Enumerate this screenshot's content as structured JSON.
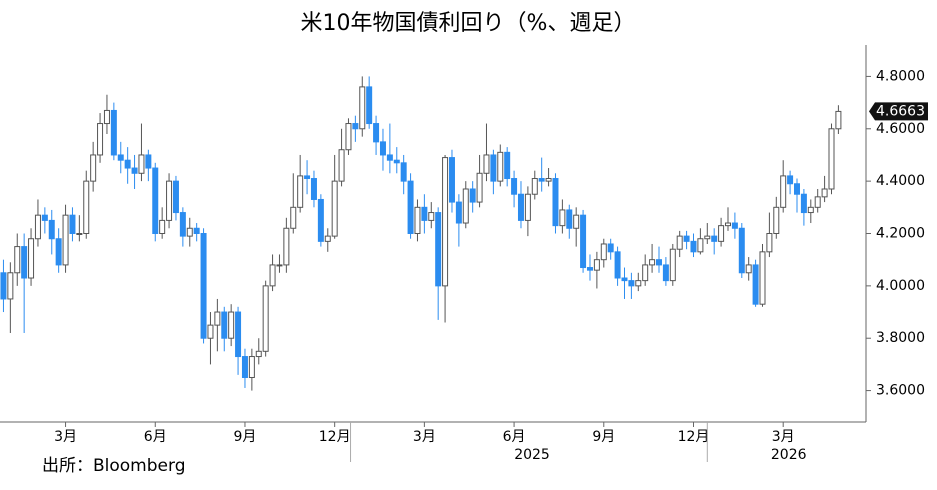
{
  "chart_data": {
    "type": "candlestick",
    "title": "米10年物国債利回り（%、週足）",
    "source": "出所：Bloomberg",
    "up_color": "#ffffff",
    "down_color": "#2b8cf0",
    "outline_color": "#555555",
    "open": [
      4.05,
      3.95,
      4.05,
      4.15,
      4.03,
      4.18,
      4.27,
      4.25,
      4.18,
      4.08,
      4.27,
      4.2,
      4.2,
      4.4,
      4.5,
      4.62,
      4.67,
      4.5,
      4.48,
      4.45,
      4.43,
      4.5,
      4.45,
      4.2,
      4.25,
      4.4,
      4.28,
      4.19,
      4.22,
      4.2,
      3.8,
      3.85,
      3.9,
      3.8,
      3.9,
      3.73,
      3.65,
      3.73,
      3.75,
      4.0,
      4.08,
      4.08,
      4.22,
      4.3,
      4.42,
      4.41,
      4.33,
      4.17,
      4.19,
      4.4,
      4.52,
      4.62,
      4.6,
      4.76,
      4.62,
      4.55,
      4.5,
      4.48,
      4.47,
      4.4,
      4.2,
      4.3,
      4.25,
      4.28,
      4.0,
      4.49,
      4.32,
      4.24,
      4.37,
      4.32,
      4.43,
      4.5,
      4.4,
      4.51,
      4.41,
      4.35,
      4.25,
      4.35,
      4.41,
      4.4,
      4.41,
      4.23,
      4.29,
      4.22,
      4.27,
      4.07,
      4.06,
      4.1,
      4.16,
      4.13,
      4.03,
      4.02,
      4.0,
      4.02,
      4.08,
      4.1,
      4.08,
      4.02,
      4.14,
      4.19,
      4.17,
      4.13,
      4.18,
      4.19,
      4.17,
      4.23,
      4.24,
      4.22,
      4.05,
      4.08,
      3.93,
      4.13,
      4.2,
      4.3,
      4.42,
      4.39,
      4.35,
      4.28,
      4.3,
      4.34,
      4.37,
      4.6
    ],
    "high": [
      4.1,
      4.09,
      4.2,
      4.2,
      4.22,
      4.33,
      4.3,
      4.29,
      4.22,
      4.31,
      4.3,
      4.27,
      4.44,
      4.55,
      4.66,
      4.73,
      4.7,
      4.55,
      4.53,
      4.5,
      4.62,
      4.52,
      4.47,
      4.3,
      4.43,
      4.42,
      4.3,
      4.26,
      4.24,
      4.22,
      3.9,
      3.95,
      3.92,
      3.93,
      3.92,
      3.76,
      3.76,
      3.8,
      4.02,
      4.12,
      4.12,
      4.26,
      4.43,
      4.5,
      4.48,
      4.44,
      4.35,
      4.22,
      4.5,
      4.6,
      4.64,
      4.65,
      4.8,
      4.8,
      4.65,
      4.6,
      4.62,
      4.53,
      4.5,
      4.43,
      4.33,
      4.35,
      4.32,
      4.3,
      4.5,
      4.52,
      4.35,
      4.4,
      4.4,
      4.5,
      4.62,
      4.52,
      4.54,
      4.53,
      4.44,
      4.4,
      4.38,
      4.44,
      4.49,
      4.45,
      4.43,
      4.33,
      4.31,
      4.3,
      4.29,
      4.12,
      4.13,
      4.18,
      4.18,
      4.15,
      4.07,
      4.05,
      4.05,
      4.12,
      4.16,
      4.15,
      4.11,
      4.16,
      4.21,
      4.21,
      4.2,
      4.22,
      4.24,
      4.22,
      4.26,
      4.3,
      4.28,
      4.24,
      4.11,
      4.1,
      4.16,
      4.28,
      4.34,
      4.48,
      4.44,
      4.41,
      4.37,
      4.33,
      4.37,
      4.42,
      4.62,
      4.69
    ],
    "low": [
      3.9,
      3.82,
      4.0,
      3.82,
      4.0,
      4.15,
      4.2,
      4.12,
      4.05,
      4.05,
      4.17,
      4.17,
      4.18,
      4.36,
      4.47,
      4.58,
      4.48,
      4.43,
      4.39,
      4.37,
      4.4,
      4.4,
      4.17,
      4.18,
      4.22,
      4.25,
      4.15,
      4.15,
      4.17,
      3.78,
      3.7,
      3.75,
      3.75,
      3.77,
      3.66,
      3.61,
      3.6,
      3.7,
      3.73,
      3.98,
      4.05,
      4.05,
      4.2,
      4.28,
      4.35,
      4.3,
      4.15,
      4.13,
      4.18,
      4.38,
      4.5,
      4.55,
      4.57,
      4.6,
      4.5,
      4.44,
      4.43,
      4.43,
      4.35,
      4.18,
      4.17,
      4.2,
      4.22,
      3.87,
      3.86,
      4.28,
      4.15,
      4.22,
      4.28,
      4.3,
      4.4,
      4.35,
      4.38,
      4.38,
      4.3,
      4.22,
      4.19,
      4.33,
      4.36,
      4.38,
      4.2,
      4.2,
      4.18,
      4.15,
      4.05,
      4.02,
      3.99,
      4.07,
      4.1,
      4.0,
      3.95,
      3.95,
      3.98,
      4.0,
      4.05,
      4.05,
      4.0,
      4.0,
      4.11,
      4.14,
      4.11,
      4.12,
      4.16,
      4.12,
      4.15,
      4.21,
      4.18,
      4.03,
      4.02,
      3.92,
      3.92,
      4.11,
      4.18,
      4.28,
      4.35,
      4.28,
      4.23,
      4.24,
      4.28,
      4.32,
      4.35,
      4.58
    ],
    "close": [
      3.95,
      4.05,
      4.15,
      4.03,
      4.18,
      4.27,
      4.25,
      4.18,
      4.08,
      4.27,
      4.2,
      4.2,
      4.4,
      4.5,
      4.62,
      4.67,
      4.5,
      4.48,
      4.45,
      4.43,
      4.5,
      4.45,
      4.2,
      4.25,
      4.4,
      4.28,
      4.19,
      4.22,
      4.2,
      3.8,
      3.85,
      3.9,
      3.8,
      3.9,
      3.73,
      3.65,
      3.73,
      3.75,
      4.0,
      4.08,
      4.08,
      4.22,
      4.3,
      4.42,
      4.41,
      4.33,
      4.17,
      4.19,
      4.4,
      4.52,
      4.62,
      4.6,
      4.76,
      4.62,
      4.55,
      4.5,
      4.48,
      4.47,
      4.4,
      4.2,
      4.3,
      4.25,
      4.28,
      4.0,
      4.49,
      4.32,
      4.24,
      4.37,
      4.32,
      4.43,
      4.5,
      4.4,
      4.51,
      4.41,
      4.35,
      4.25,
      4.35,
      4.41,
      4.4,
      4.41,
      4.23,
      4.29,
      4.22,
      4.27,
      4.07,
      4.06,
      4.1,
      4.16,
      4.13,
      4.03,
      4.02,
      4.0,
      4.02,
      4.08,
      4.1,
      4.08,
      4.02,
      4.14,
      4.19,
      4.17,
      4.13,
      4.18,
      4.19,
      4.17,
      4.23,
      4.24,
      4.22,
      4.05,
      4.08,
      3.93,
      4.13,
      4.2,
      4.3,
      4.42,
      4.39,
      4.35,
      4.28,
      4.3,
      4.34,
      4.37,
      4.6,
      4.6663
    ],
    "xlim": [
      -0.5,
      125
    ],
    "xticks": [
      {
        "value": 9,
        "label": "3月"
      },
      {
        "value": 22,
        "label": "6月"
      },
      {
        "value": 35,
        "label": "9月"
      },
      {
        "value": 48,
        "label": "12月"
      },
      {
        "value": 61,
        "label": "3月"
      },
      {
        "value": 74,
        "label": "6月"
      },
      {
        "value": 87,
        "label": "9月"
      },
      {
        "value": 100,
        "label": "12月"
      },
      {
        "value": 113,
        "label": "3月"
      }
    ],
    "year_separators": [
      50.3,
      102
    ],
    "year_labels": [
      {
        "value": 76.6,
        "label": "2025"
      },
      {
        "value": 113.8,
        "label": "2026"
      }
    ],
    "ylim": [
      3.48,
      4.92
    ],
    "yticks": [
      {
        "value": 3.6,
        "label": "3.6000"
      },
      {
        "value": 3.8,
        "label": "3.8000"
      },
      {
        "value": 4.0,
        "label": "4.0000"
      },
      {
        "value": 4.2,
        "label": "4.2000"
      },
      {
        "value": 4.4,
        "label": "4.4000"
      },
      {
        "value": 4.6,
        "label": "4.6000"
      },
      {
        "value": 4.8,
        "label": "4.8000"
      }
    ]
  }
}
